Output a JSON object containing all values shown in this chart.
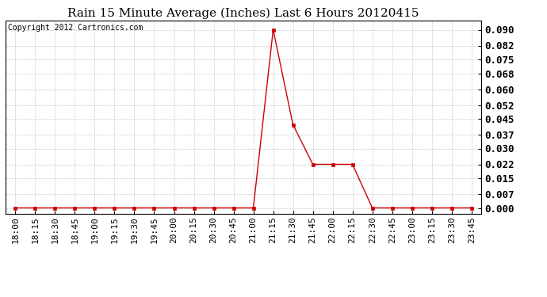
{
  "title": "Rain 15 Minute Average (Inches) Last 6 Hours 20120415",
  "copyright": "Copyright 2012 Cartronics.com",
  "x_labels": [
    "18:00",
    "18:15",
    "18:30",
    "18:45",
    "19:00",
    "19:15",
    "19:30",
    "19:45",
    "20:00",
    "20:15",
    "20:30",
    "20:45",
    "21:00",
    "21:15",
    "21:30",
    "21:45",
    "22:00",
    "22:15",
    "22:30",
    "22:45",
    "23:00",
    "23:15",
    "23:30",
    "23:45"
  ],
  "y_values": [
    0.0,
    0.0,
    0.0,
    0.0,
    0.0,
    0.0,
    0.0,
    0.0,
    0.0,
    0.0,
    0.0,
    0.0,
    0.0,
    0.09,
    0.042,
    0.022,
    0.022,
    0.022,
    0.0,
    0.0,
    0.0,
    0.0,
    0.0,
    0.0
  ],
  "y_ticks": [
    0.0,
    0.007,
    0.015,
    0.022,
    0.03,
    0.037,
    0.045,
    0.052,
    0.06,
    0.068,
    0.075,
    0.082,
    0.09
  ],
  "line_color": "#cc0000",
  "marker_color": "#cc0000",
  "bg_color": "#ffffff",
  "plot_bg_color": "#ffffff",
  "grid_color": "#cccccc",
  "title_fontsize": 11,
  "copyright_fontsize": 7,
  "tick_fontsize": 8,
  "ytick_fontsize": 9,
  "ylim": [
    -0.003,
    0.0945
  ]
}
